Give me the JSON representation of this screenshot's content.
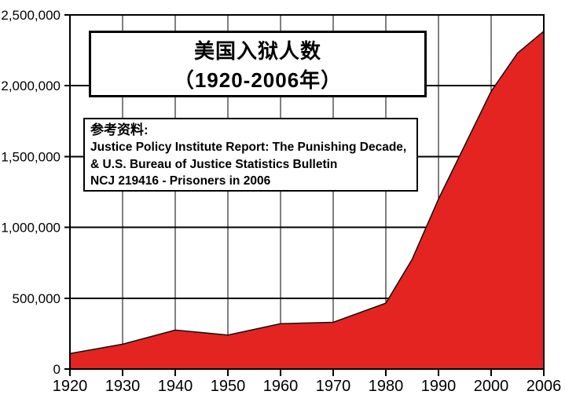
{
  "chart_data": {
    "type": "area",
    "title_lines": [
      "美国入狱人数",
      "（1920-2006年）"
    ],
    "source_lines": [
      "参考资料:",
      "Justice Policy Institute Report: The Punishing Decade,",
      "& U.S. Bureau of Justice Statistics Bulletin",
      "NCJ 219416 - Prisoners in 2006"
    ],
    "x_axis_years": [
      1920,
      1930,
      1940,
      1950,
      1960,
      1970,
      1980,
      1990,
      2000,
      2006
    ],
    "x_tick_labels": [
      "1920",
      "1930",
      "1940",
      "1950",
      "1960",
      "1970",
      "1980",
      "1990",
      "2000",
      "2006"
    ],
    "y_tick_values": [
      0,
      500000,
      1000000,
      1500000,
      2000000,
      2500000
    ],
    "y_tick_labels": [
      "0",
      "500,000",
      "1,000,000",
      "1,500,000",
      "2,000,000",
      "2,500,000"
    ],
    "ylim": [
      0,
      2500000
    ],
    "points": [
      [
        1920,
        110000
      ],
      [
        1930,
        175000
      ],
      [
        1940,
        275000
      ],
      [
        1950,
        240000
      ],
      [
        1960,
        320000
      ],
      [
        1970,
        330000
      ],
      [
        1980,
        465000
      ],
      [
        1985,
        775000
      ],
      [
        1990,
        1200000
      ],
      [
        1995,
        1580000
      ],
      [
        2000,
        1960000
      ],
      [
        2003,
        2230000
      ],
      [
        2006,
        2385000
      ]
    ],
    "grid": true,
    "legend": false,
    "fill_color": "#e32421",
    "line_color": "#111111",
    "axis_color": "#000000",
    "text_color": "#000000"
  }
}
